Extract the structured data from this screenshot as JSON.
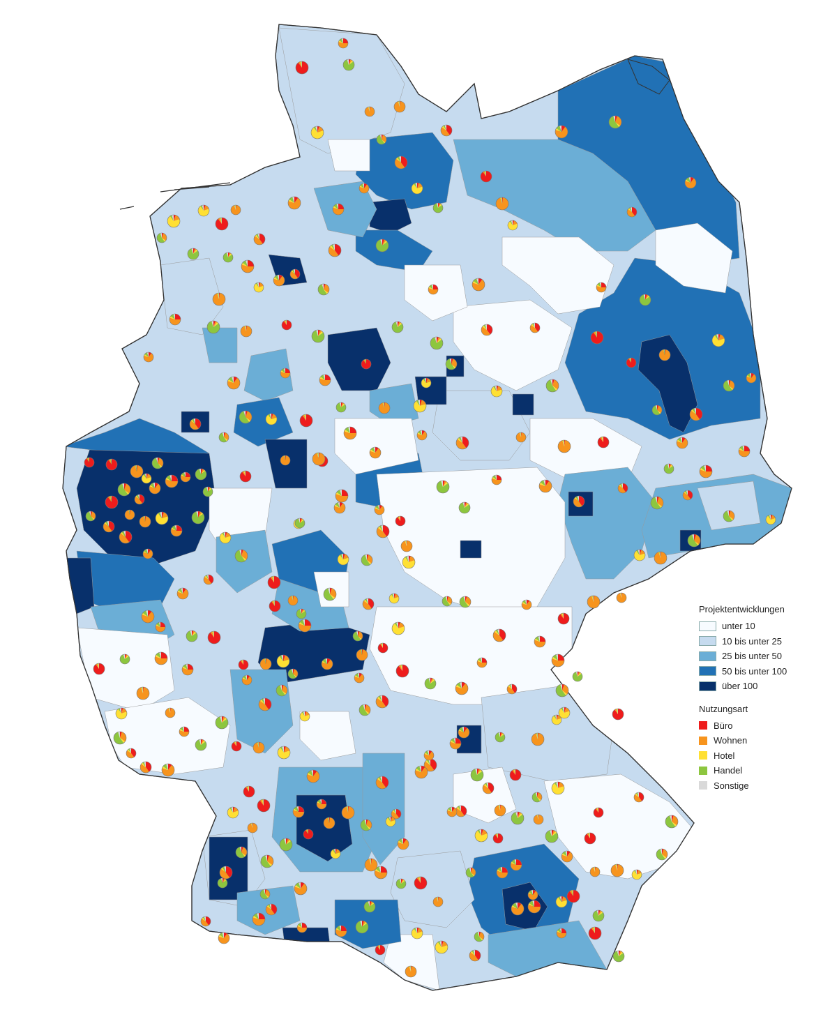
{
  "legend": {
    "density_title": "Projektentwicklungen",
    "density_classes": [
      {
        "label": "unter 10",
        "color": "#f7fbff"
      },
      {
        "label": "10 bis unter 25",
        "color": "#c6dbef"
      },
      {
        "label": "25 bis unter 50",
        "color": "#6baed6"
      },
      {
        "label": "50 bis unter 100",
        "color": "#2171b5"
      },
      {
        "label": "über 100",
        "color": "#08306b"
      }
    ],
    "usage_title": "Nutzungsart",
    "usage_types": [
      {
        "label": "Büro",
        "color": "#ee1c1c"
      },
      {
        "label": "Wohnen",
        "color": "#f7941d"
      },
      {
        "label": "Hotel",
        "color": "#ffe033"
      },
      {
        "label": "Handel",
        "color": "#8dc63f"
      },
      {
        "label": "Sonstige",
        "color": "#d9d9d9"
      }
    ]
  }
}
